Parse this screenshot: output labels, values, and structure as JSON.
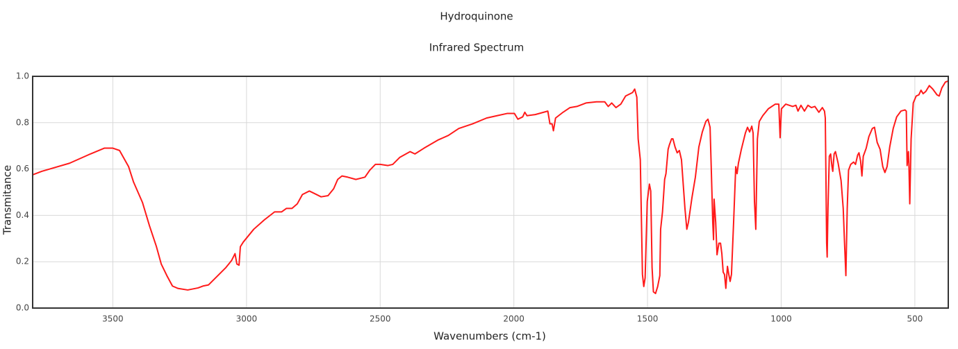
{
  "chart_data": {
    "type": "line",
    "title": "Hydroquinone",
    "subtitle": "Infrared Spectrum",
    "x_label": "Wavenumbers (cm-1)",
    "y_label": "Transmitance",
    "xlim": [
      3800,
      375
    ],
    "ylim": [
      0,
      1
    ],
    "xticks": [
      3500,
      3000,
      2500,
      2000,
      1500,
      1000,
      500
    ],
    "yticks": [
      {
        "value": 0,
        "label": "0.0"
      },
      0.2,
      0.4,
      0.6,
      0.8,
      {
        "value": 1,
        "label": "1.0"
      }
    ],
    "grid": true,
    "series": [
      {
        "color": "#ff1a1a",
        "x": [
          3800,
          3766,
          3662,
          3584,
          3532,
          3500,
          3475,
          3441,
          3423,
          3389,
          3363,
          3337,
          3319,
          3298,
          3277,
          3257,
          3220,
          3181,
          3163,
          3142,
          3116,
          3077,
          3056,
          3043,
          3036,
          3028,
          3023,
          3012,
          2973,
          2934,
          2895,
          2869,
          2851,
          2830,
          2810,
          2791,
          2765,
          2747,
          2721,
          2695,
          2674,
          2659,
          2643,
          2622,
          2591,
          2557,
          2539,
          2518,
          2500,
          2471,
          2453,
          2427,
          2388,
          2370,
          2336,
          2284,
          2245,
          2206,
          2154,
          2102,
          2063,
          2024,
          1998,
          1985,
          1967,
          1959,
          1951,
          1920,
          1873,
          1865,
          1857,
          1852,
          1844,
          1816,
          1790,
          1764,
          1730,
          1691,
          1660,
          1647,
          1634,
          1618,
          1600,
          1582,
          1556,
          1548,
          1540,
          1535,
          1527,
          1519,
          1514,
          1509,
          1501,
          1493,
          1488,
          1483,
          1478,
          1470,
          1462,
          1454,
          1451,
          1444,
          1436,
          1431,
          1423,
          1418,
          1410,
          1405,
          1397,
          1389,
          1381,
          1373,
          1360,
          1353,
          1347,
          1334,
          1321,
          1308,
          1295,
          1282,
          1274,
          1266,
          1261,
          1256,
          1253,
          1251,
          1245,
          1240,
          1233,
          1227,
          1222,
          1217,
          1212,
          1207,
          1201,
          1196,
          1191,
          1186,
          1178,
          1170,
          1165,
          1160,
          1149,
          1134,
          1126,
          1118,
          1110,
          1105,
          1100,
          1095,
          1089,
          1082,
          1069,
          1048,
          1022,
          1009,
          1004,
          999,
          983,
          957,
          945,
          937,
          926,
          913,
          900,
          887,
          874,
          859,
          846,
          838,
          835,
          833,
          830,
          828,
          825,
          820,
          815,
          810,
          807,
          802,
          797,
          787,
          776,
          768,
          763,
          758,
          753,
          748,
          740,
          729,
          722,
          714,
          709,
          703,
          698,
          693,
          682,
          672,
          659,
          651,
          641,
          630,
          620,
          612,
          604,
          594,
          581,
          568,
          552,
          537,
          532,
          529,
          524,
          522,
          519,
          514,
          506,
          495,
          485,
          477,
          469,
          459,
          446,
          433,
          417,
          409,
          399,
          386,
          375
        ],
        "values": [
          0.575,
          0.59,
          0.625,
          0.665,
          0.69,
          0.69,
          0.68,
          0.61,
          0.545,
          0.455,
          0.355,
          0.265,
          0.19,
          0.14,
          0.095,
          0.085,
          0.078,
          0.087,
          0.095,
          0.1,
          0.13,
          0.175,
          0.205,
          0.235,
          0.19,
          0.185,
          0.265,
          0.285,
          0.34,
          0.38,
          0.415,
          0.415,
          0.43,
          0.43,
          0.45,
          0.49,
          0.505,
          0.495,
          0.48,
          0.485,
          0.515,
          0.555,
          0.57,
          0.565,
          0.555,
          0.565,
          0.595,
          0.62,
          0.62,
          0.615,
          0.62,
          0.65,
          0.675,
          0.665,
          0.69,
          0.725,
          0.745,
          0.775,
          0.795,
          0.82,
          0.83,
          0.84,
          0.84,
          0.815,
          0.825,
          0.845,
          0.83,
          0.835,
          0.85,
          0.795,
          0.795,
          0.765,
          0.82,
          0.845,
          0.865,
          0.87,
          0.885,
          0.89,
          0.89,
          0.87,
          0.885,
          0.865,
          0.88,
          0.915,
          0.93,
          0.945,
          0.91,
          0.73,
          0.64,
          0.145,
          0.093,
          0.13,
          0.46,
          0.535,
          0.505,
          0.175,
          0.07,
          0.063,
          0.093,
          0.14,
          0.34,
          0.415,
          0.555,
          0.58,
          0.685,
          0.705,
          0.73,
          0.73,
          0.695,
          0.67,
          0.68,
          0.64,
          0.43,
          0.34,
          0.37,
          0.475,
          0.565,
          0.695,
          0.76,
          0.805,
          0.815,
          0.78,
          0.58,
          0.37,
          0.295,
          0.47,
          0.37,
          0.23,
          0.28,
          0.28,
          0.235,
          0.155,
          0.145,
          0.085,
          0.18,
          0.145,
          0.115,
          0.145,
          0.37,
          0.61,
          0.58,
          0.625,
          0.685,
          0.755,
          0.78,
          0.76,
          0.785,
          0.755,
          0.46,
          0.34,
          0.73,
          0.805,
          0.83,
          0.86,
          0.88,
          0.88,
          0.735,
          0.86,
          0.88,
          0.87,
          0.875,
          0.85,
          0.875,
          0.85,
          0.875,
          0.865,
          0.87,
          0.845,
          0.865,
          0.85,
          0.82,
          0.61,
          0.28,
          0.22,
          0.43,
          0.655,
          0.665,
          0.61,
          0.59,
          0.665,
          0.675,
          0.625,
          0.55,
          0.43,
          0.28,
          0.14,
          0.43,
          0.595,
          0.62,
          0.63,
          0.62,
          0.66,
          0.67,
          0.635,
          0.57,
          0.655,
          0.69,
          0.74,
          0.775,
          0.78,
          0.715,
          0.685,
          0.61,
          0.585,
          0.61,
          0.695,
          0.775,
          0.825,
          0.85,
          0.855,
          0.85,
          0.615,
          0.675,
          0.61,
          0.45,
          0.73,
          0.885,
          0.915,
          0.92,
          0.94,
          0.925,
          0.935,
          0.96,
          0.945,
          0.92,
          0.915,
          0.95,
          0.975,
          0.98
        ]
      }
    ]
  }
}
